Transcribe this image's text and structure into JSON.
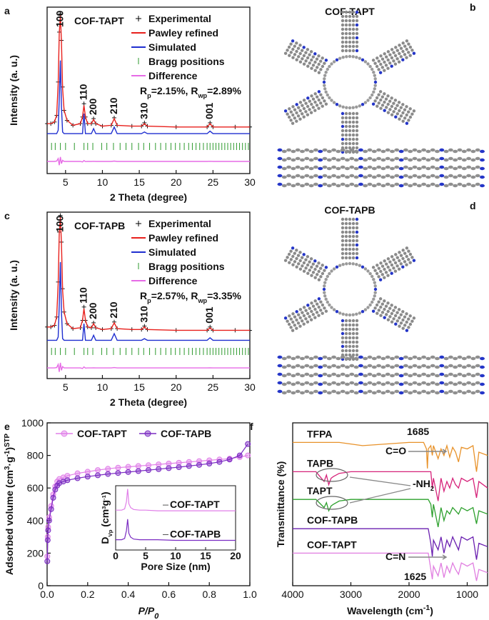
{
  "chart_data": [
    {
      "panel": "a",
      "type": "xrd",
      "title": "COF-TAPT",
      "xlabel": "2 Theta (degree)",
      "ylabel": "Intensity (a. u.)",
      "xlim": [
        2.5,
        30
      ],
      "xticks": [
        5,
        10,
        15,
        20,
        25,
        30
      ],
      "ylim": [
        0,
        100
      ],
      "x": [
        2.5,
        3,
        3.5,
        3.8,
        4.0,
        4.15,
        4.3,
        4.45,
        4.6,
        4.8,
        5.2,
        6,
        7,
        7.3,
        7.5,
        7.7,
        8,
        8.5,
        8.8,
        9.1,
        10,
        11.2,
        11.6,
        12,
        14,
        15.3,
        15.7,
        16.1,
        20,
        24.2,
        24.6,
        25,
        28,
        30
      ],
      "series": [
        {
          "name": "Experimental",
          "color": "#000000",
          "values": [
            30,
            30,
            31,
            35,
            55,
            85,
            96,
            80,
            52,
            38,
            32,
            29,
            30,
            34,
            42,
            34,
            30,
            30,
            33,
            30,
            28.5,
            29,
            33.5,
            29,
            28.5,
            28.5,
            30.5,
            28.5,
            28,
            28,
            30.5,
            28,
            28,
            28
          ]
        },
        {
          "name": "Pawley refined",
          "color": "#e8201c",
          "values": [
            30,
            30,
            31,
            35,
            54,
            84,
            95,
            79,
            51,
            38,
            32,
            29,
            30,
            34,
            41,
            34,
            30,
            30,
            32.5,
            30,
            28.5,
            29,
            33,
            29,
            28.5,
            28.5,
            30,
            28.5,
            28,
            28,
            30,
            28,
            28,
            28
          ]
        },
        {
          "name": "Simulated",
          "color": "#1f2fd0",
          "values": [
            24,
            24,
            24,
            24,
            26,
            45,
            68,
            40,
            25,
            24,
            24,
            24,
            24,
            24,
            36,
            24,
            24,
            24,
            27,
            24,
            24,
            24,
            28,
            24,
            24,
            24,
            25,
            24,
            24,
            24,
            25.5,
            24,
            24,
            24
          ]
        },
        {
          "name": "Bragg positions",
          "color": "#2e9a2e",
          "positions": [
            3.1,
            3.6,
            4.3,
            5.0,
            6.2,
            7.5,
            8.0,
            8.7,
            9.9,
            10.6,
            11.5,
            12.4,
            13.2,
            14.0,
            14.9,
            15.6,
            16.4,
            17.2,
            17.9,
            18.6,
            19.3,
            19.9,
            20.5,
            21.1,
            21.7,
            22.2,
            22.7,
            23.2,
            23.7,
            24.2,
            24.6,
            25.0,
            25.4,
            25.8,
            26.2,
            26.6,
            27.0,
            27.4,
            27.8,
            28.2,
            28.6,
            29.0,
            29.4,
            29.8
          ]
        },
        {
          "name": "Difference",
          "color": "#e66be6",
          "values": [
            7.3,
            7.3,
            7.3,
            7.5,
            9,
            5,
            10,
            6,
            8,
            7.3,
            7.3,
            7.3,
            7.3,
            7,
            7.8,
            7.2,
            7.3,
            7.3,
            7.4,
            7.3,
            7.3,
            7.3,
            7.5,
            7.3,
            7.3,
            7.3,
            7.3,
            7.3,
            7.3,
            7.3,
            7.4,
            7.3,
            7.3,
            7.3
          ]
        }
      ],
      "fit": [
        {
          "text": "R"
        },
        {
          "text": "p",
          "script": "sub"
        },
        {
          "text": "=2.15%, R"
        },
        {
          "text": "wp",
          "script": "sub"
        },
        {
          "text": "=2.89%"
        }
      ],
      "annotations": [
        {
          "text": "100",
          "x": 4.3
        },
        {
          "text": "110",
          "x": 7.5
        },
        {
          "text": "200",
          "x": 8.8
        },
        {
          "text": "210",
          "x": 11.6
        },
        {
          "text": "310",
          "x": 15.7
        },
        {
          "text": "001",
          "x": 24.6
        }
      ]
    },
    {
      "panel": "c",
      "type": "xrd",
      "title": "COF-TAPB",
      "xlabel": "2 Theta (degree)",
      "ylabel": "Intensity (a. u.)",
      "xlim": [
        2.5,
        30
      ],
      "xticks": [
        5,
        10,
        15,
        20,
        25,
        30
      ],
      "ylim": [
        0,
        100
      ],
      "x": [
        2.5,
        3,
        3.5,
        3.8,
        4.0,
        4.15,
        4.3,
        4.45,
        4.6,
        4.8,
        5.2,
        6,
        7,
        7.3,
        7.5,
        7.7,
        8,
        8.5,
        8.8,
        9.1,
        10,
        11.2,
        11.6,
        12,
        14,
        15.3,
        15.7,
        16.1,
        20,
        24.2,
        24.6,
        25,
        28,
        30
      ],
      "series": [
        {
          "name": "Experimental",
          "color": "#000000",
          "values": [
            31,
            31,
            32,
            37,
            58,
            88,
            98,
            82,
            54,
            40,
            33,
            30,
            30.5,
            35,
            43,
            35,
            31,
            30.5,
            33.5,
            30.5,
            29.5,
            30,
            34,
            30,
            29.5,
            29.5,
            31.5,
            29.5,
            29,
            29,
            31,
            29,
            29,
            29
          ]
        },
        {
          "name": "Pawley refined",
          "color": "#e8201c",
          "values": [
            31,
            31,
            32,
            37,
            57,
            87,
            97,
            81,
            53,
            40,
            33,
            30,
            30.5,
            35,
            42,
            35,
            31,
            30.5,
            33,
            30.5,
            29.5,
            30,
            33.5,
            30,
            29.5,
            29.5,
            31,
            29.5,
            29,
            29,
            30.5,
            29,
            29,
            29
          ]
        },
        {
          "name": "Simulated",
          "color": "#1f2fd0",
          "values": [
            23,
            23,
            23,
            23,
            25,
            44,
            70,
            40,
            24,
            23,
            23,
            23,
            23,
            23,
            33,
            23,
            23,
            23,
            26,
            23,
            23,
            23,
            27,
            23,
            23,
            23,
            24,
            23,
            23,
            23,
            24.5,
            23,
            23,
            23
          ]
        },
        {
          "name": "Bragg positions",
          "color": "#2e9a2e",
          "positions": [
            3.1,
            3.6,
            4.3,
            5.0,
            6.2,
            7.5,
            8.0,
            8.7,
            9.9,
            10.6,
            11.5,
            12.4,
            13.2,
            14.0,
            14.9,
            15.6,
            16.4,
            17.2,
            17.9,
            18.6,
            19.3,
            19.9,
            20.5,
            21.1,
            21.7,
            22.2,
            22.7,
            23.2,
            23.7,
            24.2,
            24.6,
            25.0,
            25.4,
            25.8,
            26.2,
            26.6,
            27.0,
            27.4,
            27.8,
            28.2,
            28.6,
            29.0,
            29.4,
            29.8
          ]
        },
        {
          "name": "Difference",
          "color": "#e66be6",
          "values": [
            6.4,
            6.4,
            6.4,
            6.6,
            8.5,
            4,
            9.5,
            5,
            7.2,
            6.4,
            6.4,
            6.4,
            6.4,
            6.1,
            7,
            6.3,
            6.4,
            6.4,
            6.5,
            6.4,
            6.4,
            6.4,
            6.6,
            6.4,
            6.4,
            6.4,
            6.4,
            6.4,
            6.4,
            6.4,
            6.5,
            6.4,
            6.4,
            6.4
          ]
        }
      ],
      "fit": [
        {
          "text": "R"
        },
        {
          "text": "p",
          "script": "sub"
        },
        {
          "text": "=2.57%, R"
        },
        {
          "text": "wp",
          "script": "sub"
        },
        {
          "text": "=3.35%"
        }
      ],
      "annotations": [
        {
          "text": "100",
          "x": 4.3
        },
        {
          "text": "110",
          "x": 7.5
        },
        {
          "text": "200",
          "x": 8.8
        },
        {
          "text": "210",
          "x": 11.6
        },
        {
          "text": "310",
          "x": 15.7
        },
        {
          "text": "001",
          "x": 24.6
        }
      ]
    },
    {
      "panel": "e",
      "type": "isotherm",
      "xlabel": [
        {
          "text": "P/P",
          "style": "italic"
        },
        {
          "text": "0",
          "script": "sub",
          "style": "italic"
        }
      ],
      "ylabel": [
        {
          "text": "Adsorbed volume (cm"
        },
        {
          "text": "3",
          "script": "sup"
        },
        {
          "text": "·g"
        },
        {
          "text": "-1",
          "script": "sup"
        },
        {
          "text": ")"
        },
        {
          "text": "STP",
          "script": "sup"
        }
      ],
      "xlim": [
        0,
        1
      ],
      "xticks": [
        {
          "value": 0,
          "label": "0.0"
        },
        {
          "value": 0.2,
          "label": "0.2"
        },
        {
          "value": 0.4,
          "label": "0.4"
        },
        {
          "value": 0.6,
          "label": "0.6"
        },
        {
          "value": 0.8,
          "label": "0.8"
        },
        {
          "value": 1,
          "label": "1.0"
        }
      ],
      "ylim": [
        0,
        1000
      ],
      "yticks": [
        0,
        200,
        400,
        600,
        800,
        1000
      ],
      "x": [
        0.001,
        0.003,
        0.005,
        0.01,
        0.02,
        0.03,
        0.04,
        0.05,
        0.06,
        0.08,
        0.1,
        0.15,
        0.2,
        0.25,
        0.3,
        0.35,
        0.4,
        0.45,
        0.5,
        0.55,
        0.6,
        0.65,
        0.7,
        0.75,
        0.8,
        0.85,
        0.9,
        0.95,
        0.99
      ],
      "series": [
        {
          "name": "COF-TAPT",
          "color": "#e07ee8",
          "values": [
            180,
            300,
            360,
            420,
            490,
            560,
            610,
            640,
            655,
            665,
            675,
            690,
            700,
            710,
            718,
            725,
            730,
            735,
            740,
            745,
            750,
            755,
            760,
            765,
            770,
            775,
            780,
            790,
            800
          ]
        },
        {
          "name": "COF-TAPB",
          "color": "#7a2bc2",
          "values": [
            150,
            280,
            340,
            400,
            470,
            540,
            590,
            615,
            630,
            640,
            648,
            660,
            670,
            678,
            686,
            692,
            698,
            704,
            710,
            716,
            722,
            728,
            735,
            742,
            750,
            760,
            775,
            800,
            870
          ]
        }
      ],
      "inset": {
        "type": "line",
        "xlabel": "Pore Size (nm)",
        "ylabel": [
          {
            "text": "D"
          },
          {
            "text": "Vp",
            "script": "sub"
          },
          {
            "text": " (cm"
          },
          {
            "text": "3",
            "script": "sup"
          },
          {
            "text": "g"
          },
          {
            "text": "-1",
            "script": "sup"
          },
          {
            "text": ")"
          }
        ],
        "xlim": [
          0,
          20
        ],
        "xticks": [
          0,
          5,
          10,
          15,
          20
        ],
        "ylim": [
          0,
          100
        ],
        "x": [
          0,
          1,
          1.5,
          1.8,
          2.0,
          2.2,
          2.5,
          3,
          4,
          5,
          7,
          10,
          15,
          20
        ],
        "series": [
          {
            "name": "COF-TAPT",
            "color": "#e07ee8",
            "values": [
              62,
              62,
              64,
              75,
              95,
              72,
              66,
              63,
              62,
              62,
              61,
              61,
              61,
              61
            ]
          },
          {
            "name": "COF-TAPB",
            "color": "#7a2bc2",
            "values": [
              16,
              16,
              18,
              30,
              48,
              26,
              20,
              17,
              16,
              16,
              16,
              15,
              15,
              15
            ]
          }
        ]
      }
    },
    {
      "panel": "f",
      "type": "ftir",
      "xlabel": [
        {
          "text": "Wavelength (cm"
        },
        {
          "text": "-1",
          "script": "sup"
        },
        {
          "text": ")"
        }
      ],
      "ylabel": "Transmittance (%)",
      "xlim": [
        4000,
        650
      ],
      "xticks": [
        4000,
        3000,
        2000,
        1000
      ],
      "ylim": [
        0,
        100
      ],
      "x": [
        4000,
        3600,
        3460,
        3420,
        3380,
        3340,
        3300,
        3200,
        3000,
        2800,
        2000,
        1750,
        1700,
        1685,
        1670,
        1625,
        1600,
        1580,
        1500,
        1450,
        1400,
        1350,
        1300,
        1250,
        1200,
        1150,
        1100,
        1000,
        900,
        840,
        800,
        650
      ],
      "series": [
        {
          "name": "TFPA",
          "color": "#e8922a",
          "values": [
            88,
            88,
            88,
            88,
            88,
            88,
            88,
            88,
            87,
            86,
            88,
            88,
            84,
            72,
            84,
            86,
            80,
            86,
            78,
            84,
            80,
            86,
            79,
            85,
            82,
            76,
            85,
            84,
            86,
            70,
            82,
            80
          ]
        },
        {
          "name": "TAPB",
          "color": "#d6237a",
          "values": [
            70,
            70,
            64,
            68,
            62,
            66,
            67,
            69,
            70,
            70,
            70,
            70,
            70,
            70,
            70,
            70,
            60,
            66,
            52,
            66,
            58,
            64,
            60,
            66,
            62,
            60,
            66,
            64,
            66,
            54,
            64,
            60
          ]
        },
        {
          "name": "TAPT",
          "color": "#2ca02c",
          "values": [
            53,
            53,
            48,
            51,
            46,
            49,
            50,
            52,
            53,
            53,
            53,
            53,
            53,
            53,
            53,
            50,
            42,
            50,
            36,
            48,
            40,
            46,
            44,
            48,
            46,
            44,
            48,
            46,
            48,
            38,
            46,
            44
          ]
        },
        {
          "name": "COF-TAPB",
          "color": "#6a1fb0",
          "values": [
            35,
            35,
            35,
            35,
            35,
            35,
            35,
            35,
            35,
            35,
            35,
            35,
            35,
            35,
            35,
            26,
            18,
            28,
            22,
            30,
            20,
            28,
            24,
            30,
            26,
            22,
            30,
            28,
            30,
            16,
            26,
            24
          ]
        },
        {
          "name": "COF-TAPT",
          "color": "#e07de0",
          "values": [
            20,
            20,
            20,
            20,
            20,
            20,
            20,
            20,
            20,
            20,
            20,
            20,
            20,
            20,
            20,
            10,
            4,
            12,
            6,
            14,
            5,
            12,
            8,
            14,
            10,
            7,
            14,
            12,
            14,
            3,
            10,
            8
          ]
        }
      ],
      "annotations": [
        [
          {
            "text": "1685"
          }
        ],
        [
          {
            "text": "C=O"
          }
        ],
        [
          {
            "text": "-NH"
          },
          {
            "text": "2",
            "script": "sub"
          }
        ],
        [
          {
            "text": "C=N"
          }
        ],
        [
          {
            "text": "1625"
          }
        ]
      ]
    }
  ],
  "structures": [
    {
      "panel": "b",
      "title": "COF-TAPT"
    },
    {
      "panel": "d",
      "title": "COF-TAPB"
    }
  ]
}
